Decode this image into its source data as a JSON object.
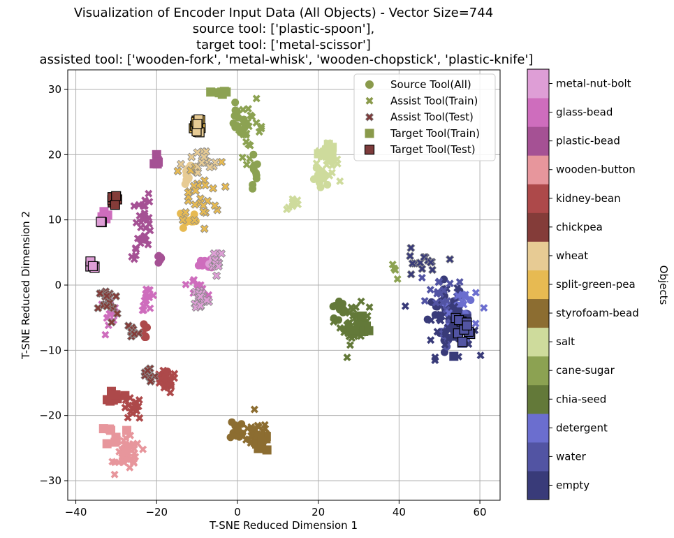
{
  "chart_data": {
    "type": "scatter",
    "title_lines": [
      "Visualization of Encoder Input Data (All Objects) - Vector Size=744",
      "source tool: ['plastic-spoon'],",
      "target tool: ['metal-scissor']",
      "assisted tool: ['wooden-fork', 'metal-whisk', 'wooden-chopstick', 'plastic-knife']"
    ],
    "xlabel": "T-SNE Reduced Dimension 1",
    "ylabel": "T-SNE Reduced Dimension 2",
    "xlim": [
      -42,
      65
    ],
    "ylim": [
      -33,
      33
    ],
    "xticks": [
      -40,
      -20,
      0,
      20,
      40,
      60
    ],
    "yticks": [
      -30,
      -20,
      -10,
      0,
      10,
      20,
      30
    ],
    "xtick_labels": [
      "−40",
      "−20",
      "0",
      "20",
      "40",
      "60"
    ],
    "ytick_labels": [
      "−30",
      "−20",
      "−10",
      "0",
      "10",
      "20",
      "30"
    ],
    "grid": true,
    "legend_position": "top-right",
    "legend": [
      {
        "label": "Source Tool(All)",
        "marker": "circle",
        "color": "#8a9a4b",
        "edge": ""
      },
      {
        "label": "Assist Tool(Train)",
        "marker": "x",
        "color": "#8a9a4b",
        "edge": ""
      },
      {
        "label": "Assist Tool(Test)",
        "marker": "x",
        "color": "#7d3b3b",
        "edge": "#888888"
      },
      {
        "label": "Target Tool(Train)",
        "marker": "square",
        "color": "#8a9a4b",
        "edge": ""
      },
      {
        "label": "Target Tool(Test)",
        "marker": "square",
        "color": "#7d3b3b",
        "edge": "#000000"
      }
    ],
    "colorbar": {
      "label": "Objects",
      "categories": [
        "empty",
        "water",
        "detergent",
        "chia-seed",
        "cane-sugar",
        "salt",
        "styrofoam-bead",
        "split-green-pea",
        "wheat",
        "chickpea",
        "kidney-bean",
        "wooden-button",
        "plastic-bead",
        "glass-bead",
        "metal-nut-bolt"
      ],
      "colors": [
        "#393b79",
        "#5254a3",
        "#6b6ecf",
        "#637939",
        "#8ca252",
        "#cedb9c",
        "#8c6d31",
        "#e7ba52",
        "#e7cb94",
        "#843c39",
        "#ad494a",
        "#e7969c",
        "#a55194",
        "#ce6dbd",
        "#de9ed6"
      ]
    },
    "clusters": [
      {
        "object": "empty",
        "kind": "source",
        "cx": 52,
        "cy": -4,
        "sx": 4,
        "sy": 4,
        "n": 26
      },
      {
        "object": "empty",
        "kind": "assist_train",
        "cx": 52,
        "cy": -6,
        "sx": 5,
        "sy": 4,
        "n": 34
      },
      {
        "object": "empty",
        "kind": "assist_test",
        "cx": 45,
        "cy": 3,
        "sx": 4,
        "sy": 2,
        "n": 14
      },
      {
        "object": "empty",
        "kind": "target_train",
        "cx": 55,
        "cy": -7,
        "sx": 2,
        "sy": 4,
        "n": 10
      },
      {
        "object": "water",
        "kind": "source",
        "cx": 54,
        "cy": -7,
        "sx": 3,
        "sy": 3,
        "n": 18
      },
      {
        "object": "water",
        "kind": "assist_train",
        "cx": 50,
        "cy": -1,
        "sx": 4,
        "sy": 3,
        "n": 16
      },
      {
        "object": "water",
        "kind": "target_test",
        "cx": 55,
        "cy": -7,
        "sx": 3,
        "sy": 2.5,
        "n": 10
      },
      {
        "object": "detergent",
        "kind": "source",
        "cx": 55,
        "cy": -5,
        "sx": 3,
        "sy": 3,
        "n": 14
      },
      {
        "object": "detergent",
        "kind": "assist_train",
        "cx": 56,
        "cy": -3,
        "sx": 3,
        "sy": 3,
        "n": 12
      },
      {
        "object": "chia-seed",
        "kind": "source",
        "cx": 25,
        "cy": -4,
        "sx": 2,
        "sy": 1.5,
        "n": 10
      },
      {
        "object": "chia-seed",
        "kind": "assist_train",
        "cx": 29,
        "cy": -6,
        "sx": 3,
        "sy": 2.5,
        "n": 40
      },
      {
        "object": "chia-seed",
        "kind": "target_train",
        "cx": 31,
        "cy": -7,
        "sx": 2,
        "sy": 2,
        "n": 10
      },
      {
        "object": "cane-sugar",
        "kind": "source",
        "cx": 0,
        "cy": 25,
        "sx": 1.5,
        "sy": 2,
        "n": 12
      },
      {
        "object": "cane-sugar",
        "kind": "source",
        "cx": 4,
        "cy": 17,
        "sx": 1,
        "sy": 3,
        "n": 10
      },
      {
        "object": "cane-sugar",
        "kind": "assist_train",
        "cx": 3,
        "cy": 24,
        "sx": 3,
        "sy": 3.5,
        "n": 24
      },
      {
        "object": "cane-sugar",
        "kind": "assist_train",
        "cx": 39,
        "cy": 2,
        "sx": 1.5,
        "sy": 1,
        "n": 4
      },
      {
        "object": "cane-sugar",
        "kind": "target_train",
        "cx": -4,
        "cy": 29.5,
        "sx": 1.5,
        "sy": 0.7,
        "n": 6
      },
      {
        "object": "salt",
        "kind": "source",
        "cx": 21,
        "cy": 16,
        "sx": 2,
        "sy": 1.5,
        "n": 12
      },
      {
        "object": "salt",
        "kind": "assist_train",
        "cx": 22,
        "cy": 19,
        "sx": 2.5,
        "sy": 2,
        "n": 28
      },
      {
        "object": "salt",
        "kind": "assist_train",
        "cx": 14,
        "cy": 12.5,
        "sx": 1.5,
        "sy": 0.8,
        "n": 8
      },
      {
        "object": "salt",
        "kind": "target_train",
        "cx": 22,
        "cy": 20.5,
        "sx": 1.5,
        "sy": 1,
        "n": 8
      },
      {
        "object": "styrofoam-bead",
        "kind": "source",
        "cx": 0,
        "cy": -22,
        "sx": 1.5,
        "sy": 1.5,
        "n": 10
      },
      {
        "object": "styrofoam-bead",
        "kind": "assist_train",
        "cx": 5,
        "cy": -23,
        "sx": 3,
        "sy": 2,
        "n": 44
      },
      {
        "object": "styrofoam-bead",
        "kind": "target_train",
        "cx": 6,
        "cy": -24,
        "sx": 2,
        "sy": 1.5,
        "n": 8
      },
      {
        "object": "split-green-pea",
        "kind": "source",
        "cx": -12,
        "cy": 10,
        "sx": 1.5,
        "sy": 1.5,
        "n": 12
      },
      {
        "object": "split-green-pea",
        "kind": "assist_test",
        "cx": -10,
        "cy": 14,
        "sx": 5,
        "sy": 4,
        "n": 30
      },
      {
        "object": "split-green-pea",
        "kind": "target_test",
        "cx": -10,
        "cy": 24.5,
        "sx": 1.3,
        "sy": 1.2,
        "n": 10
      },
      {
        "object": "wheat",
        "kind": "source",
        "cx": -13,
        "cy": 17,
        "sx": 1.5,
        "sy": 1.5,
        "n": 10
      },
      {
        "object": "wheat",
        "kind": "assist_test",
        "cx": -9,
        "cy": 18.5,
        "sx": 4,
        "sy": 2,
        "n": 16
      },
      {
        "object": "wheat",
        "kind": "target_test",
        "cx": -10,
        "cy": 24,
        "sx": 1,
        "sy": 1,
        "n": 6
      },
      {
        "object": "chickpea",
        "kind": "assist_test",
        "cx": -32,
        "cy": -3,
        "sx": 2,
        "sy": 2.5,
        "n": 20
      },
      {
        "object": "chickpea",
        "kind": "assist_test",
        "cx": -26,
        "cy": -7,
        "sx": 1.5,
        "sy": 1.5,
        "n": 10
      },
      {
        "object": "chickpea",
        "kind": "assist_test",
        "cx": -22,
        "cy": -14,
        "sx": 1.5,
        "sy": 1.5,
        "n": 8
      },
      {
        "object": "chickpea",
        "kind": "target_test",
        "cx": -31,
        "cy": 13,
        "sx": 1,
        "sy": 0.6,
        "n": 6
      },
      {
        "object": "kidney-bean",
        "kind": "source",
        "cx": -23,
        "cy": -7,
        "sx": 0.8,
        "sy": 1.5,
        "n": 8
      },
      {
        "object": "kidney-bean",
        "kind": "source",
        "cx": -18,
        "cy": -13.5,
        "sx": 1,
        "sy": 1,
        "n": 5
      },
      {
        "object": "kidney-bean",
        "kind": "assist_train",
        "cx": -18,
        "cy": -15,
        "sx": 2.5,
        "sy": 1.5,
        "n": 20
      },
      {
        "object": "kidney-bean",
        "kind": "assist_train",
        "cx": -26,
        "cy": -19,
        "sx": 2,
        "sy": 1.5,
        "n": 16
      },
      {
        "object": "kidney-bean",
        "kind": "target_train",
        "cx": -30,
        "cy": -17,
        "sx": 1.5,
        "sy": 0.8,
        "n": 8
      },
      {
        "object": "wooden-button",
        "kind": "assist_train",
        "cx": -27,
        "cy": -26,
        "sx": 2.5,
        "sy": 2,
        "n": 44
      },
      {
        "object": "wooden-button",
        "kind": "target_train",
        "cx": -30,
        "cy": -23,
        "sx": 2,
        "sy": 1.5,
        "n": 8
      },
      {
        "object": "plastic-bead",
        "kind": "source",
        "cx": -19,
        "cy": 4,
        "sx": 1,
        "sy": 0.8,
        "n": 8
      },
      {
        "object": "plastic-bead",
        "kind": "assist_train",
        "cx": -23,
        "cy": 10,
        "sx": 1.5,
        "sy": 3.5,
        "n": 28
      },
      {
        "object": "plastic-bead",
        "kind": "assist_train",
        "cx": -25,
        "cy": 5,
        "sx": 1,
        "sy": 1.5,
        "n": 6
      },
      {
        "object": "plastic-bead",
        "kind": "target_train",
        "cx": -20,
        "cy": 19.5,
        "sx": 0.7,
        "sy": 0.8,
        "n": 5
      },
      {
        "object": "glass-bead",
        "kind": "source",
        "cx": -7,
        "cy": 3.5,
        "sx": 2,
        "sy": 1,
        "n": 8
      },
      {
        "object": "glass-bead",
        "kind": "assist_train",
        "cx": -22,
        "cy": -2,
        "sx": 1.5,
        "sy": 1.5,
        "n": 16
      },
      {
        "object": "glass-bead",
        "kind": "assist_train",
        "cx": -32,
        "cy": -4,
        "sx": 2,
        "sy": 1.5,
        "n": 14
      },
      {
        "object": "glass-bead",
        "kind": "assist_train",
        "cx": -10,
        "cy": 0,
        "sx": 2,
        "sy": 1.5,
        "n": 10
      },
      {
        "object": "glass-bead",
        "kind": "target_train",
        "cx": -33,
        "cy": 11,
        "sx": 0.8,
        "sy": 1,
        "n": 6
      },
      {
        "object": "metal-nut-bolt",
        "kind": "source",
        "cx": -6,
        "cy": 4,
        "sx": 1.5,
        "sy": 1,
        "n": 6
      },
      {
        "object": "metal-nut-bolt",
        "kind": "assist_test",
        "cx": -9,
        "cy": -2,
        "sx": 1.5,
        "sy": 1.5,
        "n": 20
      },
      {
        "object": "metal-nut-bolt",
        "kind": "assist_test",
        "cx": -5,
        "cy": 4,
        "sx": 1.5,
        "sy": 1.5,
        "n": 10
      },
      {
        "object": "metal-nut-bolt",
        "kind": "target_test",
        "cx": -36,
        "cy": 3,
        "sx": 0.8,
        "sy": 0.6,
        "n": 5
      },
      {
        "object": "metal-nut-bolt",
        "kind": "target_test",
        "cx": -34,
        "cy": 9.5,
        "sx": 0.3,
        "sy": 0.6,
        "n": 2
      }
    ]
  }
}
